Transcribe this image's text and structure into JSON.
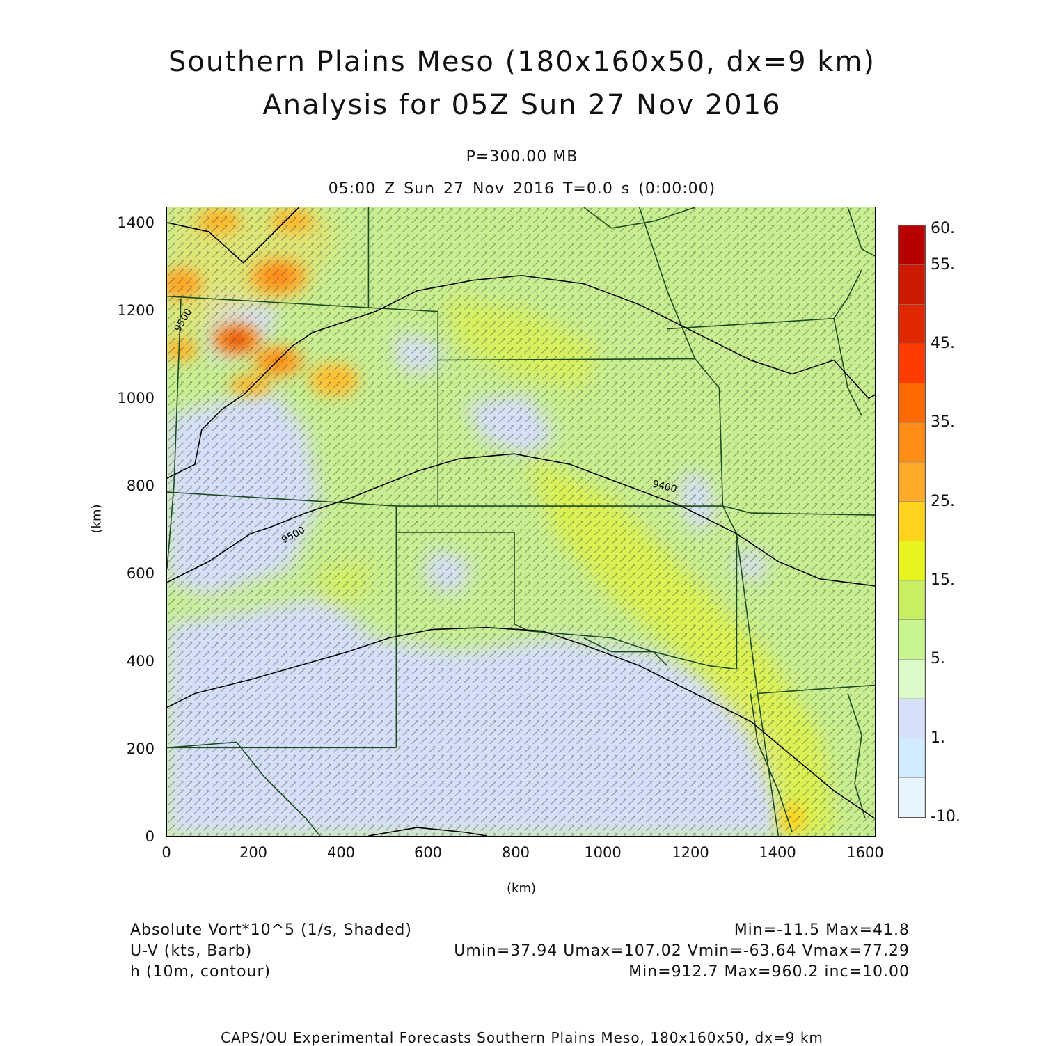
{
  "header": {
    "title_line1": "Southern Plains Meso (180x160x50, dx=9 km)",
    "title_line2": "Analysis for 05Z Sun 27 Nov 2016",
    "level": "P=300.00 MB",
    "time_line": "05:00 Z Sun 27 Nov 2016    T=0.0 s (0:00:00)"
  },
  "axes": {
    "x_label": "(km)",
    "y_label": "(km)",
    "x_ticks": [
      "0",
      "200",
      "400",
      "600",
      "800",
      "1000",
      "1200",
      "1400",
      "1600"
    ],
    "y_ticks": [
      "0",
      "200",
      "400",
      "600",
      "800",
      "1000",
      "1200",
      "1400"
    ]
  },
  "colorbar": {
    "labels": [
      "60.",
      "55.",
      "45.",
      "35.",
      "25.",
      "15.",
      "5.",
      "1.",
      "-10."
    ],
    "colors": [
      "#b80000",
      "#cc1a00",
      "#e02800",
      "#ff3c00",
      "#ff6a00",
      "#ff8c14",
      "#ffaa28",
      "#ffd21e",
      "#e6f51e",
      "#c8ee64",
      "#c8f590",
      "#dcfac8",
      "#d7e0fa",
      "#d2ebff",
      "#e6f5ff"
    ]
  },
  "contours": {
    "labels": [
      "9500",
      "9500",
      "9400"
    ]
  },
  "legend": {
    "line1_left": "Absolute Vort*10^5 (1/s, Shaded)",
    "line1_right": "Min=-11.5 Max=41.8",
    "line2_left": "U-V (kts, Barb)",
    "line2_right": "Umin=37.94 Umax=107.02 Vmin=-63.64 Vmax=77.29",
    "line3_left": "h (10m, contour)",
    "line3_right": "Min=912.7 Max=960.2 inc=10.00"
  },
  "footer": "CAPS/OU Experimental Forecasts  Southern Plains Meso, 180x160x50, dx=9 km"
}
